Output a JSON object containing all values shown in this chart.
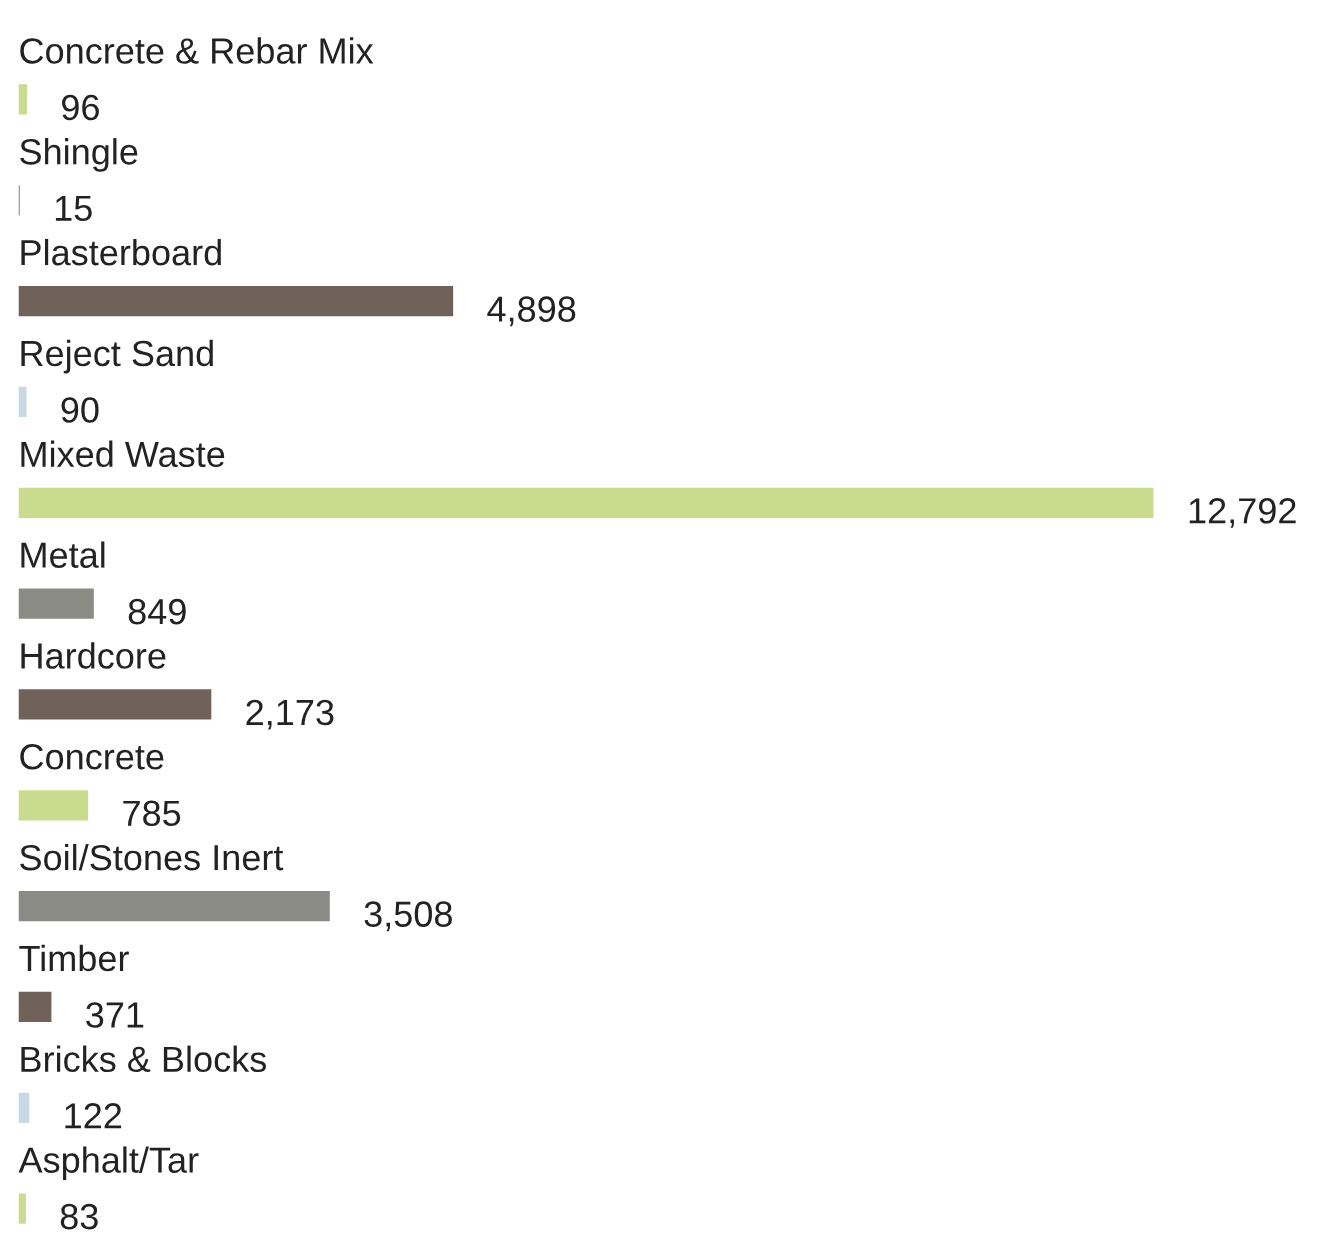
{
  "chart_data": {
    "type": "bar",
    "orientation": "horizontal",
    "categories": [
      "Concrete & Rebar Mix",
      "Shingle",
      "Plasterboard",
      "Reject Sand",
      "Mixed Waste",
      "Metal",
      "Hardcore",
      "Concrete",
      "Soil/Stones Inert",
      "Timber",
      "Bricks & Blocks",
      "Asphalt/Tar"
    ],
    "values": [
      96,
      15,
      4898,
      90,
      12792,
      849,
      2173,
      785,
      3508,
      371,
      122,
      83
    ],
    "value_labels": [
      "96",
      "15",
      "4,898",
      "90",
      "12,792",
      "849",
      "2,173",
      "785",
      "3,508",
      "371",
      "122",
      "83"
    ],
    "colors": [
      "#c9dc8e",
      "#8b8b86",
      "#706259",
      "#c6d9e4",
      "#c9dc8e",
      "#8b8b86",
      "#706259",
      "#c9dc8e",
      "#8b8b86",
      "#706259",
      "#c6d9e4",
      "#c9dc8e"
    ]
  }
}
